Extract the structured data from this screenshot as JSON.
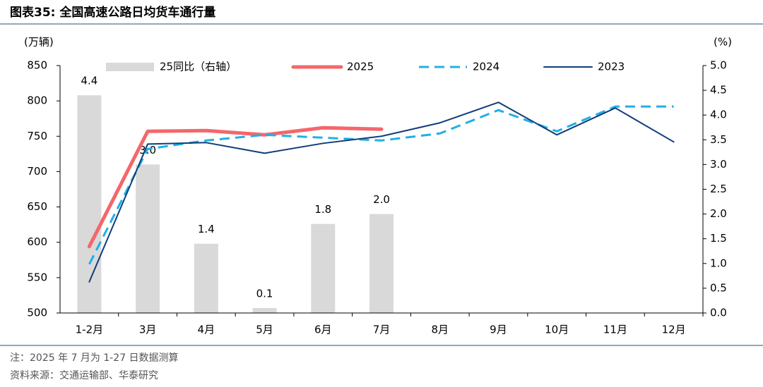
{
  "chart_data": {
    "type": "bar-line",
    "title": "图表35:  全国高速公路日均货车通行量",
    "y_label": "(万辆)",
    "y2_label": "(%)",
    "categories": [
      "1-2月",
      "3月",
      "4月",
      "5月",
      "6月",
      "7月",
      "8月",
      "9月",
      "10月",
      "11月",
      "12月"
    ],
    "ylim": [
      500,
      850
    ],
    "yticks": [
      500,
      550,
      600,
      650,
      700,
      750,
      800,
      850
    ],
    "y2lim": [
      0,
      5
    ],
    "y2ticks": [
      {
        "value": 0,
        "label": "0.0"
      },
      0.5,
      {
        "value": 1,
        "label": "1.0"
      },
      1.5,
      {
        "value": 2,
        "label": "2.0"
      },
      2.5,
      {
        "value": 3,
        "label": "3.0"
      },
      3.5,
      {
        "value": 4,
        "label": "4.0"
      },
      4.5,
      {
        "value": 5,
        "label": "5.0"
      }
    ],
    "series": [
      {
        "name": "25同比（右轴）",
        "kind": "bar",
        "axis": "y2",
        "color": "#d9d9d9",
        "values": [
          4.4,
          3.0,
          1.4,
          0.1,
          1.8,
          2.0,
          null,
          null,
          null,
          null,
          null
        ],
        "value_labels": [
          "4.4",
          "3.0",
          "1.4",
          "0.1",
          "1.8",
          "2.0",
          null,
          null,
          null,
          null,
          null
        ]
      },
      {
        "name": "2025",
        "kind": "line",
        "style": "solid",
        "width": 5,
        "color": "#f4676a",
        "values": [
          594,
          757,
          758,
          752,
          762,
          760,
          null,
          null,
          null,
          null,
          null
        ]
      },
      {
        "name": "2024",
        "kind": "line",
        "style": "dashed",
        "width": 3,
        "color": "#1fb0e6",
        "values": [
          569,
          732,
          744,
          752,
          748,
          744,
          754,
          787,
          757,
          792,
          792
        ]
      },
      {
        "name": "2023",
        "kind": "line",
        "style": "solid",
        "width": 2,
        "color": "#0f3d7a",
        "values": [
          544,
          739,
          741,
          726,
          740,
          750,
          769,
          798,
          752,
          790,
          742
        ]
      }
    ],
    "notes": [
      "注：2025 年 7 月为 1-27 日数据测算",
      "资料来源：交通运输部、华泰研究"
    ]
  }
}
